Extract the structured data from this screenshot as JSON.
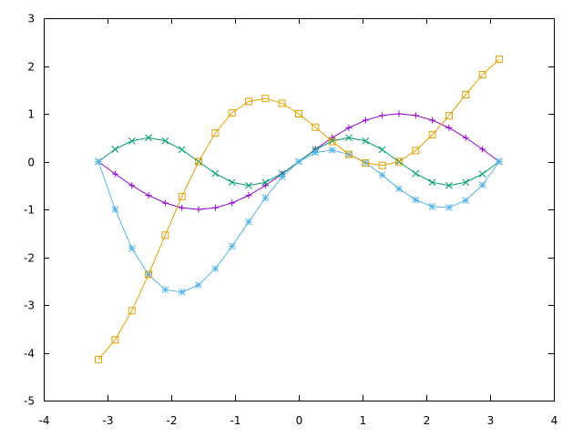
{
  "chart_data": {
    "type": "line",
    "title": "",
    "xlabel": "",
    "ylabel": "",
    "xlim": [
      -4,
      4
    ],
    "ylim": [
      -5,
      3
    ],
    "xticks": [
      "-4",
      "-3",
      "-2",
      "-1",
      "0",
      "1",
      "2",
      "3",
      "4"
    ],
    "yticks": [
      "3",
      "2",
      "1",
      "0",
      "-1",
      "-2",
      "-3",
      "-4",
      "-5"
    ],
    "grid": false,
    "legend": "none",
    "x": [
      -3.142,
      -2.88,
      -2.618,
      -2.356,
      -2.094,
      -1.833,
      -1.571,
      -1.309,
      -1.047,
      -0.785,
      -0.524,
      -0.262,
      0.0,
      0.262,
      0.524,
      0.785,
      1.047,
      1.309,
      1.571,
      1.833,
      2.094,
      2.356,
      2.618,
      2.88,
      3.142
    ],
    "series": [
      {
        "marker": "plus",
        "color": "#9400d3",
        "values": [
          0.0,
          -0.259,
          -0.5,
          -0.707,
          -0.866,
          -0.966,
          -1.0,
          -0.966,
          -0.866,
          -0.707,
          -0.5,
          -0.259,
          0.0,
          0.259,
          0.5,
          0.707,
          0.866,
          0.966,
          1.0,
          0.966,
          0.866,
          0.707,
          0.5,
          0.259,
          0.0
        ]
      },
      {
        "marker": "cross",
        "color": "#009e73",
        "values": [
          0.0,
          0.259,
          0.433,
          0.5,
          0.433,
          0.25,
          0.0,
          -0.25,
          -0.433,
          -0.5,
          -0.433,
          -0.25,
          0.0,
          0.25,
          0.433,
          0.5,
          0.433,
          0.25,
          0.0,
          -0.25,
          -0.433,
          -0.5,
          -0.433,
          -0.259,
          0.0
        ]
      },
      {
        "marker": "asterisk",
        "color": "#56b4e9",
        "values": [
          0.0,
          -1.0,
          -1.814,
          -2.367,
          -2.68,
          -2.73,
          -2.58,
          -2.24,
          -1.77,
          -1.26,
          -0.76,
          -0.32,
          0.0,
          0.19,
          0.24,
          0.15,
          -0.02,
          -0.28,
          -0.57,
          -0.8,
          -0.94,
          -0.96,
          -0.81,
          -0.49,
          0.0
        ]
      },
      {
        "marker": "square",
        "color": "#e69f00",
        "values": [
          -4.14,
          -3.73,
          -3.12,
          -2.36,
          -1.54,
          -0.73,
          0.0,
          0.6,
          1.02,
          1.26,
          1.32,
          1.22,
          1.0,
          0.72,
          0.42,
          0.15,
          -0.03,
          -0.08,
          0.0,
          0.23,
          0.56,
          0.96,
          1.4,
          1.82,
          2.14
        ]
      }
    ]
  }
}
